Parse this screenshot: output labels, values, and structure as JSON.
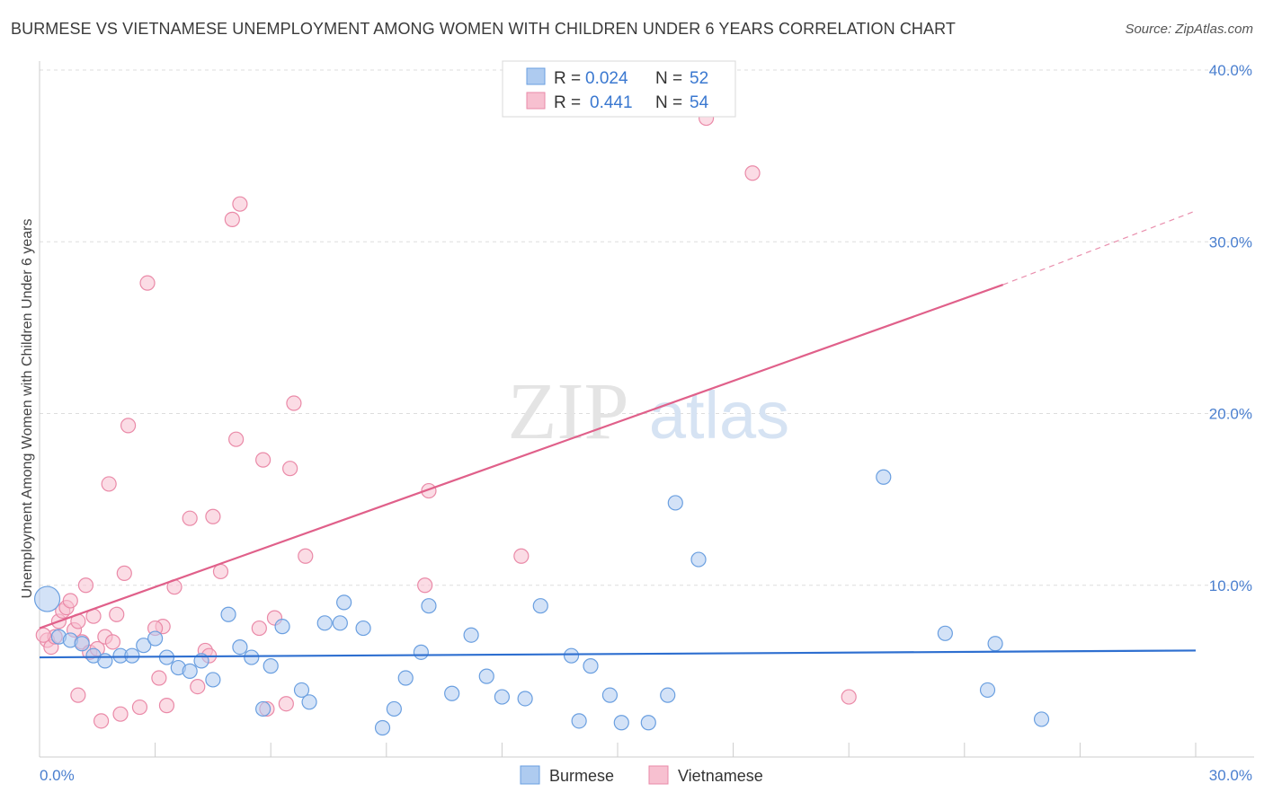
{
  "title": "BURMESE VS VIETNAMESE UNEMPLOYMENT AMONG WOMEN WITH CHILDREN UNDER 6 YEARS CORRELATION CHART",
  "source": "Source: ZipAtlas.com",
  "watermark": {
    "zip": "ZIP",
    "atlas": "atlas"
  },
  "legend": {
    "rows": [
      {
        "r_label": "R =",
        "r_value": "0.024",
        "n_label": "N =",
        "n_value": "52"
      },
      {
        "r_label": "R =",
        "r_value": "0.441",
        "n_label": "N =",
        "n_value": "54"
      }
    ]
  },
  "bottom_legend": [
    "Burmese",
    "Vietnamese"
  ],
  "colors": {
    "burmese_fill": "#aecbf0",
    "burmese_stroke": "#6a9fe0",
    "burmese_line": "#2e6fd0",
    "vietnamese_fill": "#f7c0d0",
    "vietnamese_stroke": "#ea8aa8",
    "vietnamese_line": "#e0608a",
    "tick": "#4a7fcf",
    "grid": "#dddddd"
  },
  "chart_data": {
    "type": "scatter",
    "title": "BURMESE VS VIETNAMESE UNEMPLOYMENT AMONG WOMEN WITH CHILDREN UNDER 6 YEARS CORRELATION CHART",
    "xlabel": "",
    "ylabel": "Unemployment Among Women with Children Under 6 years",
    "xlim": [
      0,
      30
    ],
    "ylim": [
      0,
      40
    ],
    "x_tick_labels": [
      "0.0%",
      "30.0%"
    ],
    "y_tick_labels": [
      "10.0%",
      "20.0%",
      "30.0%",
      "40.0%"
    ],
    "y_ticks": [
      10,
      20,
      30,
      40
    ],
    "grid": true,
    "legend_position": "top-center",
    "series": [
      {
        "name": "Burmese",
        "R": 0.024,
        "N": 52,
        "trend": {
          "x": [
            0,
            30
          ],
          "y": [
            5.8,
            6.2
          ]
        },
        "points": [
          [
            0.2,
            9.2
          ],
          [
            0.5,
            7.0
          ],
          [
            0.8,
            6.8
          ],
          [
            1.1,
            6.6
          ],
          [
            1.4,
            5.9
          ],
          [
            1.7,
            5.6
          ],
          [
            2.1,
            5.9
          ],
          [
            2.4,
            5.9
          ],
          [
            2.7,
            6.5
          ],
          [
            3.0,
            6.9
          ],
          [
            3.3,
            5.8
          ],
          [
            3.6,
            5.2
          ],
          [
            3.9,
            5.0
          ],
          [
            4.2,
            5.6
          ],
          [
            4.5,
            4.5
          ],
          [
            4.9,
            8.3
          ],
          [
            5.2,
            6.4
          ],
          [
            5.5,
            5.8
          ],
          [
            6.0,
            5.3
          ],
          [
            6.3,
            7.6
          ],
          [
            6.8,
            3.9
          ],
          [
            7.0,
            3.2
          ],
          [
            7.4,
            7.8
          ],
          [
            7.8,
            7.8
          ],
          [
            7.9,
            9.0
          ],
          [
            8.4,
            7.5
          ],
          [
            8.9,
            1.7
          ],
          [
            9.2,
            2.8
          ],
          [
            9.5,
            4.6
          ],
          [
            9.9,
            6.1
          ],
          [
            10.1,
            8.8
          ],
          [
            10.7,
            3.7
          ],
          [
            11.2,
            7.1
          ],
          [
            11.6,
            4.7
          ],
          [
            12.0,
            3.5
          ],
          [
            12.6,
            3.4
          ],
          [
            13.0,
            8.8
          ],
          [
            13.8,
            5.9
          ],
          [
            14.0,
            2.1
          ],
          [
            14.3,
            5.3
          ],
          [
            14.8,
            3.6
          ],
          [
            15.1,
            2.0
          ],
          [
            15.8,
            2.0
          ],
          [
            16.3,
            3.6
          ],
          [
            16.5,
            14.8
          ],
          [
            17.1,
            11.5
          ],
          [
            5.8,
            2.8
          ],
          [
            21.9,
            16.3
          ],
          [
            23.5,
            7.2
          ],
          [
            24.6,
            3.9
          ],
          [
            24.8,
            6.6
          ],
          [
            26.0,
            2.2
          ]
        ]
      },
      {
        "name": "Vietnamese",
        "R": 0.441,
        "N": 54,
        "trend": {
          "x": [
            0,
            25
          ],
          "y": [
            7.5,
            27.5
          ]
        },
        "trend_extension": {
          "x": [
            25,
            30
          ],
          "y": [
            27.5,
            31.8
          ]
        },
        "points": [
          [
            0.2,
            6.8
          ],
          [
            0.3,
            6.4
          ],
          [
            0.4,
            7.0
          ],
          [
            0.5,
            7.9
          ],
          [
            0.6,
            8.5
          ],
          [
            0.7,
            8.7
          ],
          [
            0.8,
            9.1
          ],
          [
            0.9,
            7.4
          ],
          [
            1.0,
            7.9
          ],
          [
            1.1,
            6.7
          ],
          [
            1.2,
            10.0
          ],
          [
            1.3,
            6.1
          ],
          [
            1.4,
            8.2
          ],
          [
            1.5,
            6.3
          ],
          [
            1.6,
            2.1
          ],
          [
            1.7,
            7.0
          ],
          [
            1.8,
            15.9
          ],
          [
            1.9,
            6.7
          ],
          [
            2.0,
            8.3
          ],
          [
            2.1,
            2.5
          ],
          [
            2.2,
            10.7
          ],
          [
            2.3,
            19.3
          ],
          [
            2.6,
            2.9
          ],
          [
            2.8,
            27.6
          ],
          [
            3.1,
            4.6
          ],
          [
            3.2,
            7.6
          ],
          [
            3.3,
            3.0
          ],
          [
            3.5,
            9.9
          ],
          [
            3.9,
            13.9
          ],
          [
            4.1,
            4.1
          ],
          [
            4.3,
            6.2
          ],
          [
            4.4,
            5.9
          ],
          [
            4.5,
            14.0
          ],
          [
            4.7,
            10.8
          ],
          [
            5.0,
            31.3
          ],
          [
            5.1,
            18.5
          ],
          [
            5.2,
            32.2
          ],
          [
            5.7,
            7.5
          ],
          [
            5.8,
            17.3
          ],
          [
            5.9,
            2.8
          ],
          [
            6.1,
            8.1
          ],
          [
            6.4,
            3.1
          ],
          [
            6.5,
            16.8
          ],
          [
            6.6,
            20.6
          ],
          [
            6.9,
            11.7
          ],
          [
            1.0,
            3.6
          ],
          [
            10.0,
            10.0
          ],
          [
            10.1,
            15.5
          ],
          [
            12.5,
            11.7
          ],
          [
            17.3,
            37.2
          ],
          [
            18.5,
            34.0
          ],
          [
            21.0,
            3.5
          ],
          [
            3.0,
            7.5
          ],
          [
            0.1,
            7.1
          ]
        ]
      }
    ]
  }
}
